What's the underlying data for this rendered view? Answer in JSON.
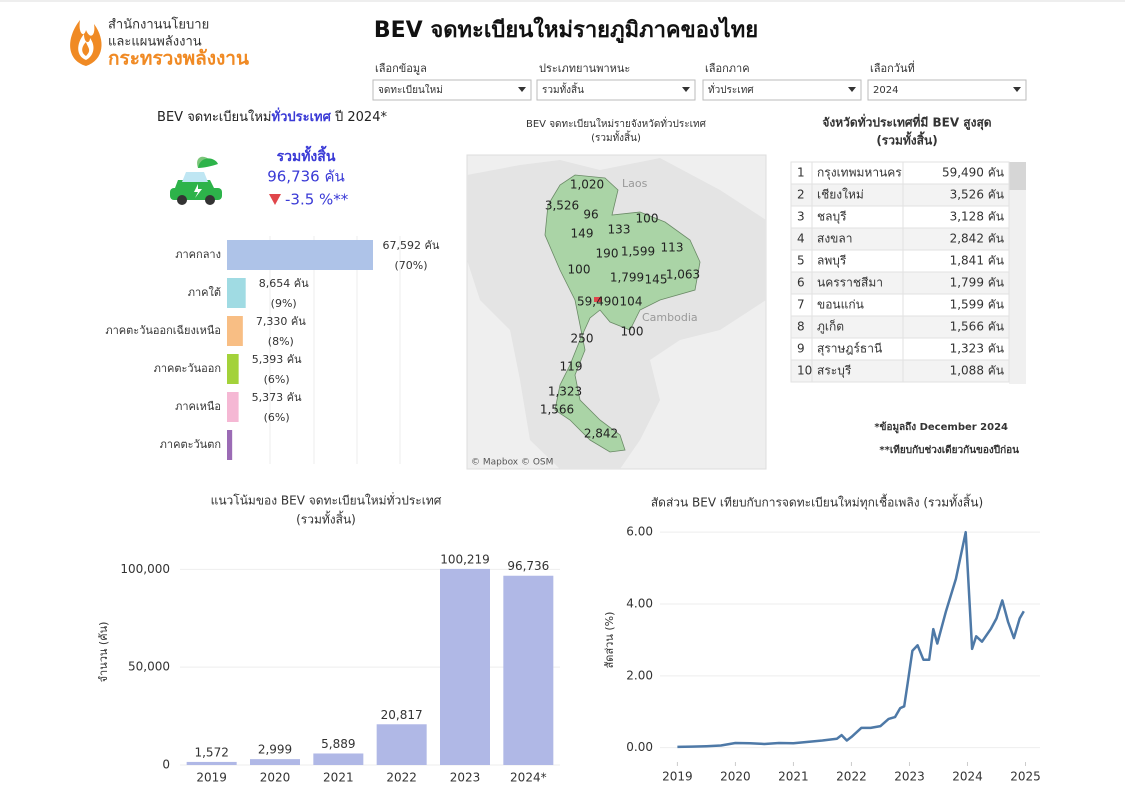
{
  "header": {
    "logo_lines": [
      "สำนักงานนโยบาย",
      "และแผนพลังงาน",
      "กระทรวงพลังงาน"
    ],
    "title": "BEV จดทะเบียนใหม่รายภูมิภาคของไทย"
  },
  "filters": [
    {
      "label": "เลือกข้อมูล",
      "value": "จดทะเบียนใหม่"
    },
    {
      "label": "ประเภทยานพาหนะ",
      "value": "รวมทั้งสิ้น"
    },
    {
      "label": "เลือกภาค",
      "value": "ทั่วประเทศ"
    },
    {
      "label": "เลือกวันที่",
      "value": "2024"
    }
  ],
  "kpi": {
    "label": "รวมทั้งสิ้น",
    "value": "96,736 คัน",
    "change": "-3.5 %**"
  },
  "chart_data": [
    {
      "type": "bar",
      "orientation": "horizontal",
      "title_parts": [
        "BEV จดทะเบียนใหม่",
        "ทั่วประเทศ",
        " ปี  2024*"
      ],
      "categories": [
        "ภาคกลาง",
        "ภาคใต้",
        "ภาคตะวันออกเฉียงเหนือ",
        "ภาคตะวันออก",
        "ภาคเหนือ",
        "ภาคตะวันตก"
      ],
      "values": [
        67592,
        8654,
        7330,
        5393,
        5373,
        2394
      ],
      "value_labels": [
        "67,592 คัน",
        "8,654 คัน",
        "7,330 คัน",
        "5,393 คัน",
        "5,373 คัน",
        null
      ],
      "shares": [
        70,
        9,
        8,
        6,
        6,
        null
      ],
      "share_labels": [
        "(70%)",
        "(9%)",
        "(8%)",
        "(6%)",
        "(6%)",
        null
      ],
      "colors": [
        "#aec3e8",
        "#a0dbe3",
        "#f8be84",
        "#a3d23a",
        "#f5b8d4",
        "#9b6bb5"
      ],
      "xlim": [
        0,
        100000
      ]
    },
    {
      "type": "bar",
      "title": "แนวโน้มของ BEV จดทะเบียนใหม่ทั่วประเทศ",
      "subtitle": "(รวมทั้งสิ้น)",
      "y_label": "จำนวน (คัน)",
      "categories": [
        "2019",
        "2020",
        "2021",
        "2022",
        "2023",
        "2024*"
      ],
      "values": [
        1572,
        2999,
        5889,
        20817,
        100219,
        96736
      ],
      "value_labels": [
        "1,572",
        "2,999",
        "5,889",
        "20,817",
        "100,219",
        "96,736"
      ],
      "color": "#b0b8e6",
      "ylim": [
        0,
        115000
      ],
      "yticks": [
        0,
        {
          "value": 50000,
          "label": "50,000"
        },
        {
          "value": 100000,
          "label": "100,000"
        }
      ],
      "grid": true
    },
    {
      "type": "line",
      "title": "สัดส่วน BEV เทียบกับการจดทะเบียนใหม่ทุกเชื้อเพลิง (รวมทั้งสิ้น)",
      "y_label": "สัดส่วน (%)",
      "x": [
        2019.0,
        2019.25,
        2019.5,
        2019.75,
        2020.0,
        2020.25,
        2020.5,
        2020.75,
        2021.0,
        2021.25,
        2021.5,
        2021.75,
        2021.83,
        2021.92,
        2022.0,
        2022.17,
        2022.33,
        2022.5,
        2022.64,
        2022.75,
        2022.84,
        2022.91,
        2022.97,
        2023.05,
        2023.14,
        2023.24,
        2023.34,
        2023.41,
        2023.48,
        2023.63,
        2023.8,
        2023.97,
        2024.08,
        2024.15,
        2024.25,
        2024.4,
        2024.5,
        2024.6,
        2024.7,
        2024.8,
        2024.9,
        2024.97
      ],
      "values": [
        0.02,
        0.03,
        0.04,
        0.06,
        0.13,
        0.12,
        0.1,
        0.13,
        0.12,
        0.16,
        0.2,
        0.25,
        0.35,
        0.2,
        0.3,
        0.55,
        0.55,
        0.6,
        0.8,
        0.85,
        1.1,
        1.15,
        1.8,
        2.7,
        2.85,
        2.45,
        2.45,
        3.3,
        2.9,
        3.8,
        4.7,
        6.0,
        2.75,
        3.1,
        2.95,
        3.3,
        3.6,
        4.1,
        3.5,
        3.05,
        3.6,
        3.8
      ],
      "color": "#4e79a7",
      "xlim": [
        2018.7,
        2025.25
      ],
      "ylim": [
        -0.4,
        6.2
      ],
      "xticks": [
        2019,
        2020,
        2021,
        2022,
        2023,
        2024,
        2025
      ],
      "yticks": [
        {
          "value": 0,
          "label": "0.00"
        },
        {
          "value": 2,
          "label": "2.00"
        },
        {
          "value": 4,
          "label": "4.00"
        },
        {
          "value": 6,
          "label": "6.00"
        }
      ],
      "grid": true
    }
  ],
  "map": {
    "title": "BEV จดทะเบียนใหม่รายจังหวัดทั่วประเทศ",
    "subtitle": "(รวมทั้งสิ้น)",
    "countries": [
      "Laos",
      "Cambodia"
    ],
    "credit": "© Mapbox  © OSM",
    "labels": [
      "1,020",
      "3,526",
      "96",
      "149",
      "133",
      "100",
      "1,599",
      "113",
      "190",
      "100",
      "1,799",
      "145",
      "1,063",
      "59,490",
      "104",
      "100",
      "250",
      "119",
      "1,323",
      "1,566",
      "2,842"
    ]
  },
  "table": {
    "title": "จังหวัดทั่วประเทศที่มี BEV สูงสุด",
    "subtitle": "(รวมทั้งสิ้น)",
    "rows": [
      [
        "1",
        "กรุงเทพมหานคร",
        "59,490 คัน"
      ],
      [
        "2",
        "เชียงใหม่",
        "3,526 คัน"
      ],
      [
        "3",
        "ชลบุรี",
        "3,128 คัน"
      ],
      [
        "4",
        "สงขลา",
        "2,842 คัน"
      ],
      [
        "5",
        "ลพบุรี",
        "1,841 คัน"
      ],
      [
        "6",
        "นครราชสีมา",
        "1,799 คัน"
      ],
      [
        "7",
        "ขอนแก่น",
        "1,599 คัน"
      ],
      [
        "8",
        "ภูเก็ต",
        "1,566 คัน"
      ],
      [
        "9",
        "สุราษฎร์ธานี",
        "1,323 คัน"
      ],
      [
        "10",
        "สระบุรี",
        "1,088 คัน"
      ]
    ]
  },
  "notes": [
    "*ข้อมูลถึง December 2024",
    "**เทียบกับช่วงเดียวกันของปีก่อน"
  ]
}
